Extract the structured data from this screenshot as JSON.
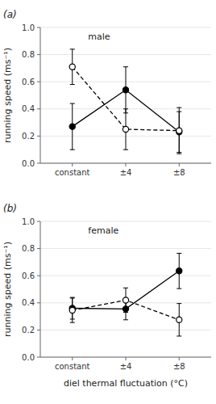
{
  "chart_data": [
    {
      "type": "line",
      "title": "(a)",
      "annotations": [
        "male"
      ],
      "categories": [
        "constant",
        "±4",
        "±8"
      ],
      "ylabel": "running speed (ms⁻¹)",
      "ylim": [
        0.0,
        1.0
      ],
      "yticks": [
        {
          "value": 0.0,
          "label": "0.0"
        },
        0.2,
        0.4,
        0.6,
        0.8,
        {
          "value": 1.0,
          "label": "1.0"
        }
      ],
      "series": [
        {
          "color": "#000000",
          "marker": "filled-circle",
          "line_style": "solid",
          "values": [
            0.27,
            0.54,
            0.23
          ],
          "errors": [
            0.17,
            0.17,
            0.15
          ]
        },
        {
          "color": "#000000",
          "marker": "open-circle",
          "line_style": "dashed",
          "values": [
            0.71,
            0.25,
            0.24
          ],
          "errors": [
            0.13,
            0.15,
            0.17
          ]
        }
      ]
    },
    {
      "type": "line",
      "title": "(b)",
      "annotations": [
        "female"
      ],
      "categories": [
        "constant",
        "±4",
        "±8"
      ],
      "ylabel": "running speed (ms⁻¹)",
      "xlabel": "diel thermal fluctuation (°C)",
      "ylim": [
        0.0,
        1.0
      ],
      "yticks": [
        {
          "value": 0.0,
          "label": "0.0"
        },
        0.2,
        0.4,
        0.6,
        0.8,
        {
          "value": 1.0,
          "label": "1.0"
        }
      ],
      "series": [
        {
          "color": "#000000",
          "marker": "filled-circle",
          "line_style": "solid",
          "values": [
            0.36,
            0.355,
            0.635
          ],
          "errors": [
            0.08,
            0.08,
            0.13
          ]
        },
        {
          "color": "#000000",
          "marker": "open-circle",
          "line_style": "dashed",
          "values": [
            0.345,
            0.42,
            0.275
          ],
          "errors": [
            0.09,
            0.09,
            0.12
          ]
        }
      ]
    }
  ]
}
